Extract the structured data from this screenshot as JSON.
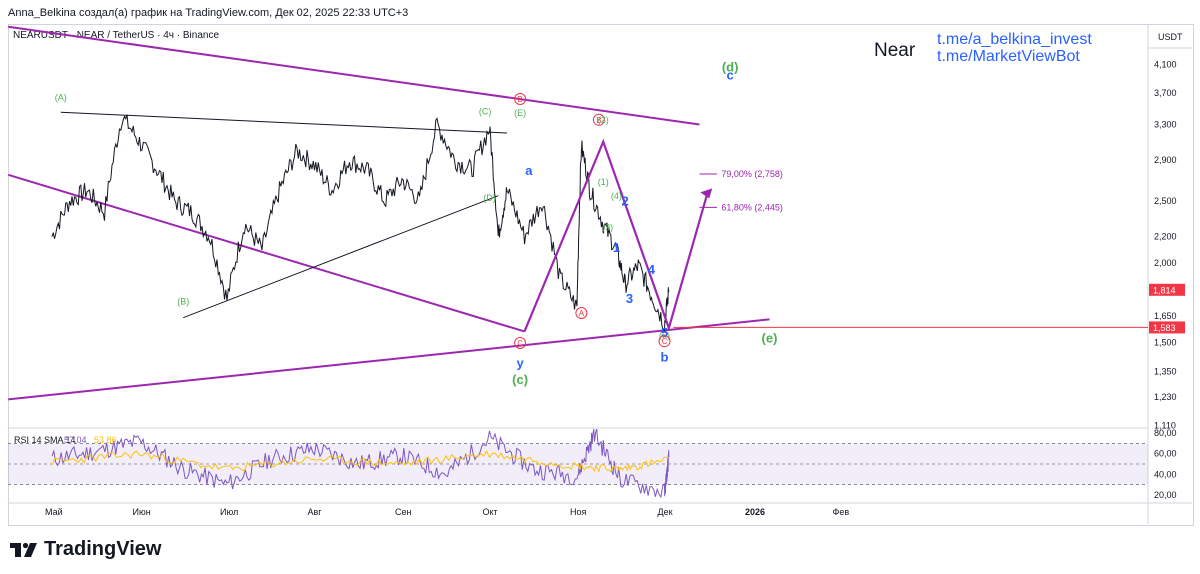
{
  "header": {
    "attribution": "Anna_Belkina создал(а) график на TradingView.com, Дек 02, 2025 22:33 UTC+3",
    "symbol_line": "NEARUSDT · NEAR / TetherUS · 4ч · Binance",
    "title": "Near",
    "links": [
      "t.me/a_belkina_invest",
      "t.me/MarketViewBot"
    ]
  },
  "footer": {
    "brand": "TradingView"
  },
  "colors": {
    "price": "#131722",
    "purple": "#9c27b0",
    "green": "#4caf50",
    "blue": "#2962ff",
    "red": "#f23645",
    "rsi": "#7e57c2",
    "rsi_ma": "#ffc107"
  },
  "chart_data": [
    {
      "type": "line",
      "title": "NEARUSDT · NEAR / TetherUS · 4ч · Binance",
      "yscale": "log",
      "ylim": [
        1.1,
        4.4
      ],
      "y_axis_label": "USDT",
      "y_ticks": [
        "4,100",
        "3,700",
        "3,300",
        "2,900",
        "2,500",
        "2,200",
        "2,000",
        "1,650",
        "1,500",
        "1,350",
        "1,230",
        "1,110"
      ],
      "x_ticks": [
        "Май",
        "Июн",
        "Июл",
        "Авг",
        "Сен",
        "Окт",
        "Ноя",
        "Дек",
        "2026",
        "Фев"
      ],
      "price_badges": [
        {
          "label": "1,814",
          "value": 1.814,
          "color": "#f23645"
        },
        {
          "label": "1,583",
          "value": 1.583,
          "color": "#f23645"
        }
      ],
      "series": [
        {
          "name": "NEARUSDT close (approx., month index)",
          "x": [
            0,
            0.2,
            0.4,
            0.6,
            0.8,
            1.0,
            1.2,
            1.4,
            1.6,
            1.8,
            2.0,
            2.2,
            2.4,
            2.6,
            2.8,
            3.0,
            3.2,
            3.4,
            3.6,
            3.8,
            4.0,
            4.2,
            4.4,
            4.6,
            4.8,
            5.0,
            5.1,
            5.2,
            5.4,
            5.6,
            5.8,
            6.0,
            6.05,
            6.15,
            6.3,
            6.45,
            6.55,
            6.7,
            6.85,
            7.0,
            7.05
          ],
          "y": [
            2.2,
            2.5,
            2.6,
            2.4,
            3.4,
            3.1,
            2.8,
            2.5,
            2.4,
            2.2,
            1.75,
            2.3,
            2.1,
            2.6,
            3.0,
            2.85,
            2.6,
            2.9,
            2.8,
            2.5,
            2.7,
            2.5,
            3.3,
            2.9,
            2.8,
            3.25,
            2.2,
            2.6,
            2.2,
            2.5,
            1.9,
            1.7,
            3.05,
            2.6,
            2.3,
            2.1,
            1.85,
            1.98,
            1.78,
            1.6,
            1.81
          ]
        }
      ],
      "trendlines": [
        {
          "name": "upper channel",
          "color": "#9c27b0",
          "from": [
            -0.5,
            4.7
          ],
          "to": [
            7.4,
            3.3
          ]
        },
        {
          "name": "lower wedge line",
          "color": "#9c27b0",
          "from": [
            -0.5,
            2.75
          ],
          "to": [
            5.4,
            1.56
          ]
        },
        {
          "name": "rising support",
          "color": "#9c27b0",
          "from": [
            -0.5,
            1.22
          ],
          "to": [
            8.2,
            1.63
          ]
        },
        {
          "name": "black resistance",
          "color": "#131722",
          "from": [
            0.1,
            3.45
          ],
          "to": [
            5.2,
            3.2
          ]
        },
        {
          "name": "black support",
          "color": "#131722",
          "from": [
            1.5,
            1.64
          ],
          "to": [
            5.1,
            2.55
          ]
        }
      ],
      "fib_levels": [
        {
          "label": "79,00% (2,758)",
          "value": 2.758
        },
        {
          "label": "61,80% (2,445)",
          "value": 2.445
        }
      ],
      "wave_labels": [
        {
          "text": "(A)",
          "x": 0.1,
          "y": 3.6,
          "color": "#4caf50"
        },
        {
          "text": "(B)",
          "x": 1.5,
          "y": 1.72,
          "color": "#4caf50"
        },
        {
          "text": "(C)",
          "x": 4.95,
          "y": 3.42,
          "color": "#4caf50"
        },
        {
          "text": "(D)",
          "x": 5.0,
          "y": 2.5,
          "color": "#4caf50"
        },
        {
          "text": "(E)",
          "x": 5.35,
          "y": 3.4,
          "color": "#4caf50"
        },
        {
          "text": "B",
          "x": 5.35,
          "y": 3.58,
          "color": "#f23645"
        },
        {
          "text": "C",
          "x": 5.35,
          "y": 1.48,
          "color": "#f23645"
        },
        {
          "text": "y",
          "x": 5.35,
          "y": 1.37,
          "color": "#2962ff"
        },
        {
          "text": "(c)",
          "x": 5.35,
          "y": 1.29,
          "color": "#4caf50"
        },
        {
          "text": "a",
          "x": 5.45,
          "y": 2.75,
          "color": "#2962ff"
        },
        {
          "text": "A",
          "x": 6.05,
          "y": 1.65,
          "color": "#f23645"
        },
        {
          "text": "B",
          "x": 6.25,
          "y": 3.32,
          "color": "#f23645"
        },
        {
          "text": "(2)",
          "x": 6.3,
          "y": 3.32,
          "color": "#4caf50"
        },
        {
          "text": "(1)",
          "x": 6.3,
          "y": 2.65,
          "color": "#4caf50"
        },
        {
          "text": "(3)",
          "x": 6.35,
          "y": 2.25,
          "color": "#4caf50"
        },
        {
          "text": "(4)",
          "x": 6.45,
          "y": 2.52,
          "color": "#4caf50"
        },
        {
          "text": "2",
          "x": 6.55,
          "y": 2.46,
          "color": "#2962ff"
        },
        {
          "text": "1",
          "x": 6.45,
          "y": 2.08,
          "color": "#2962ff"
        },
        {
          "text": "3",
          "x": 6.6,
          "y": 1.73,
          "color": "#2962ff"
        },
        {
          "text": "4",
          "x": 6.85,
          "y": 1.92,
          "color": "#2962ff"
        },
        {
          "text": "(5)",
          "x": 7.0,
          "y": 1.52,
          "color": "#4caf50"
        },
        {
          "text": "5",
          "x": 7.0,
          "y": 1.53,
          "color": "#2962ff"
        },
        {
          "text": "C",
          "x": 7.0,
          "y": 1.49,
          "color": "#f23645"
        },
        {
          "text": "b",
          "x": 7.0,
          "y": 1.4,
          "color": "#2962ff"
        },
        {
          "text": "(d)",
          "x": 7.75,
          "y": 4.0,
          "color": "#4caf50"
        },
        {
          "text": "c",
          "x": 7.75,
          "y": 3.88,
          "color": "#2962ff"
        },
        {
          "text": "(e)",
          "x": 8.2,
          "y": 1.5,
          "color": "#4caf50"
        }
      ],
      "projection_path": [
        [
          5.4,
          1.56
        ],
        [
          6.3,
          3.1
        ],
        [
          7.05,
          1.58
        ],
        [
          7.5,
          2.6
        ]
      ]
    },
    {
      "type": "line",
      "title": "RSI 14 SMA 14",
      "legend": "RSI 14 SMA 14",
      "values_shown": [
        "57,04",
        "53,86"
      ],
      "ylim": [
        15,
        85
      ],
      "y_ticks": [
        "80,00",
        "60,00",
        "40,00",
        "20,00"
      ],
      "bands": {
        "upper": 70,
        "middle": 50,
        "lower": 30
      },
      "series": [
        {
          "name": "RSI",
          "x": [
            0,
            0.5,
            1.0,
            1.5,
            2.0,
            2.5,
            3.0,
            3.5,
            4.0,
            4.5,
            5.0,
            5.5,
            6.0,
            6.2,
            6.5,
            7.0,
            7.05
          ],
          "y": [
            55,
            62,
            72,
            45,
            30,
            55,
            65,
            50,
            58,
            40,
            75,
            45,
            38,
            80,
            35,
            22,
            57
          ]
        },
        {
          "name": "RSI-based MA",
          "x": [
            0,
            1,
            2,
            3,
            4,
            5,
            6,
            6.5,
            7.05
          ],
          "y": [
            52,
            60,
            45,
            55,
            50,
            60,
            48,
            45,
            54
          ]
        }
      ]
    }
  ]
}
